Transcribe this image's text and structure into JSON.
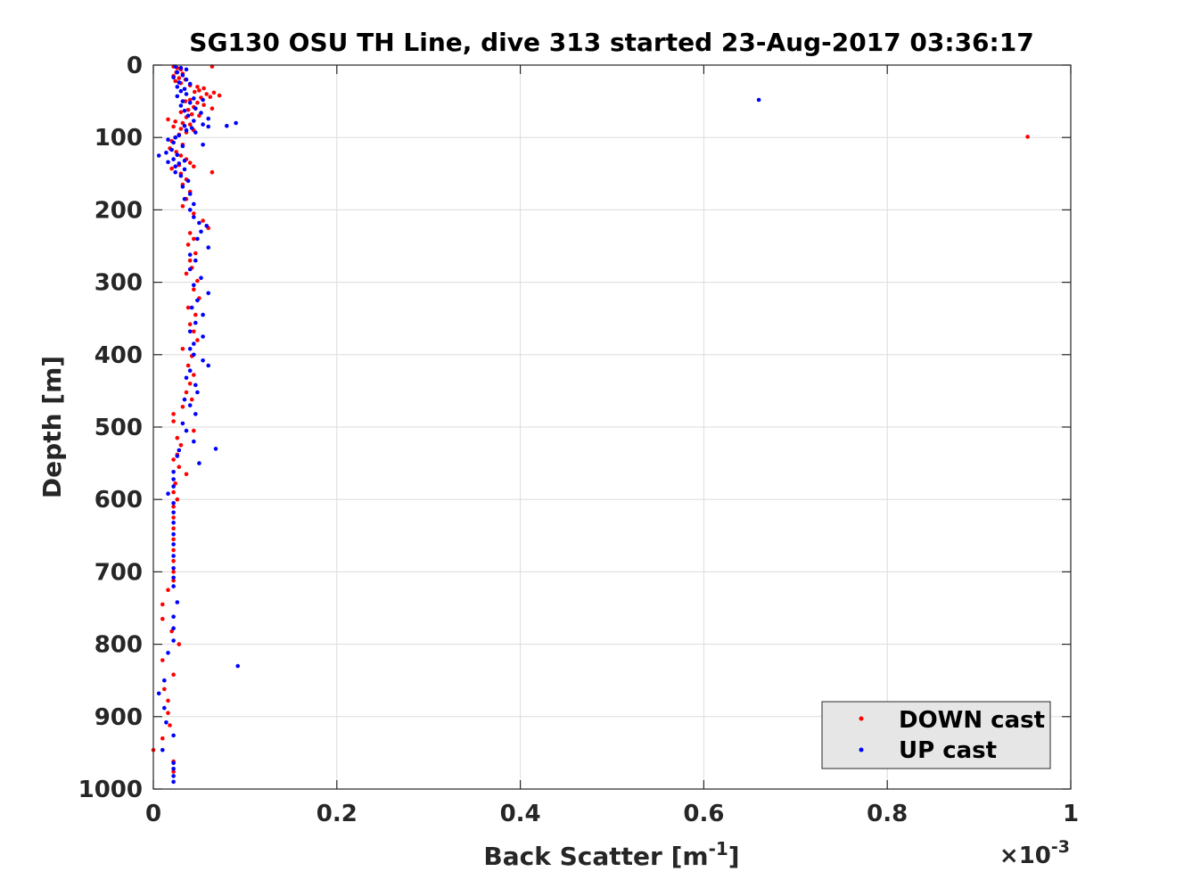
{
  "chart_data": {
    "type": "scatter",
    "title": "SG130 OSU TH Line, dive 313 started 23-Aug-2017 03:36:17",
    "xlabel": "Back Scatter [m",
    "xlabel_sup": "-1",
    "xlabel_tail": "]",
    "ylabel": "Depth [m]",
    "x_multiplier": {
      "prefix": "×10",
      "exponent": "-3"
    },
    "xlim": [
      0,
      1
    ],
    "ylim": [
      0,
      1000
    ],
    "y_reversed": true,
    "xticks": [
      "0",
      "0.2",
      "0.4",
      "0.6",
      "0.8",
      "1"
    ],
    "yticks": [
      "0",
      "100",
      "200",
      "300",
      "400",
      "500",
      "600",
      "700",
      "800",
      "900",
      "1000"
    ],
    "grid": true,
    "legend_position": "bottom-right",
    "series": [
      {
        "name": "DOWN cast",
        "color": "#ff0000",
        "points": [
          [
            0.022,
            2
          ],
          [
            0.026,
            4
          ],
          [
            0.03,
            6
          ],
          [
            0.064,
            2
          ],
          [
            0.025,
            10
          ],
          [
            0.032,
            12
          ],
          [
            0.022,
            15
          ],
          [
            0.028,
            18
          ],
          [
            0.035,
            20
          ],
          [
            0.024,
            22
          ],
          [
            0.03,
            25
          ],
          [
            0.04,
            28
          ],
          [
            0.048,
            30
          ],
          [
            0.055,
            32
          ],
          [
            0.05,
            35
          ],
          [
            0.045,
            37
          ],
          [
            0.058,
            40
          ],
          [
            0.066,
            38
          ],
          [
            0.072,
            42
          ],
          [
            0.062,
            44
          ],
          [
            0.052,
            45
          ],
          [
            0.04,
            48
          ],
          [
            0.035,
            50
          ],
          [
            0.048,
            52
          ],
          [
            0.055,
            55
          ],
          [
            0.044,
            58
          ],
          [
            0.064,
            60
          ],
          [
            0.038,
            62
          ],
          [
            0.03,
            65
          ],
          [
            0.042,
            68
          ],
          [
            0.05,
            70
          ],
          [
            0.036,
            72
          ],
          [
            0.016,
            75
          ],
          [
            0.024,
            78
          ],
          [
            0.032,
            80
          ],
          [
            0.04,
            82
          ],
          [
            0.022,
            85
          ],
          [
            0.03,
            88
          ],
          [
            0.044,
            90
          ],
          [
            0.036,
            93
          ],
          [
            0.028,
            96
          ],
          [
            0.024,
            100
          ],
          [
            0.02,
            105
          ],
          [
            0.032,
            110
          ],
          [
            0.018,
            115
          ],
          [
            0.025,
            120
          ],
          [
            0.03,
            125
          ],
          [
            0.036,
            130
          ],
          [
            0.04,
            135
          ],
          [
            0.028,
            138
          ],
          [
            0.044,
            140
          ],
          [
            0.02,
            143
          ],
          [
            0.064,
            148
          ],
          [
            0.03,
            150
          ],
          [
            0.036,
            158
          ],
          [
            0.032,
            165
          ],
          [
            0.04,
            175
          ],
          [
            0.036,
            185
          ],
          [
            0.032,
            195
          ],
          [
            0.044,
            205
          ],
          [
            0.054,
            215
          ],
          [
            0.06,
            225
          ],
          [
            0.04,
            232
          ],
          [
            0.044,
            240
          ],
          [
            0.038,
            248
          ],
          [
            0.046,
            260
          ],
          [
            0.04,
            270
          ],
          [
            0.042,
            280
          ],
          [
            0.036,
            288
          ],
          [
            0.048,
            298
          ],
          [
            0.044,
            310
          ],
          [
            0.05,
            322
          ],
          [
            0.038,
            335
          ],
          [
            0.046,
            345
          ],
          [
            0.04,
            358
          ],
          [
            0.044,
            368
          ],
          [
            0.048,
            380
          ],
          [
            0.032,
            392
          ],
          [
            0.042,
            402
          ],
          [
            0.038,
            415
          ],
          [
            0.044,
            428
          ],
          [
            0.04,
            440
          ],
          [
            0.036,
            452
          ],
          [
            0.042,
            462
          ],
          [
            0.032,
            472
          ],
          [
            0.022,
            482
          ],
          [
            0.022,
            492
          ],
          [
            0.044,
            505
          ],
          [
            0.026,
            515
          ],
          [
            0.03,
            525
          ],
          [
            0.026,
            538
          ],
          [
            0.022,
            545
          ],
          [
            0.028,
            555
          ],
          [
            0.036,
            565
          ],
          [
            0.024,
            578
          ],
          [
            0.022,
            590
          ],
          [
            0.026,
            600
          ],
          [
            0.022,
            610
          ],
          [
            0.022,
            625
          ],
          [
            0.022,
            640
          ],
          [
            0.022,
            655
          ],
          [
            0.022,
            670
          ],
          [
            0.022,
            685
          ],
          [
            0.022,
            700
          ],
          [
            0.022,
            712
          ],
          [
            0.016,
            725
          ],
          [
            0.01,
            745
          ],
          [
            0.01,
            765
          ],
          [
            0.02,
            782
          ],
          [
            0.028,
            800
          ],
          [
            0.01,
            822
          ],
          [
            0.022,
            842
          ],
          [
            0.012,
            862
          ],
          [
            0.016,
            878
          ],
          [
            0.016,
            895
          ],
          [
            0.018,
            912
          ],
          [
            0.01,
            930
          ],
          [
            0.0,
            946
          ],
          [
            0.022,
            962
          ],
          [
            0.022,
            976
          ],
          [
            0.953,
            99
          ]
        ]
      },
      {
        "name": "UP cast",
        "color": "#0000ff",
        "points": [
          [
            0.024,
            2
          ],
          [
            0.03,
            4
          ],
          [
            0.036,
            6
          ],
          [
            0.026,
            10
          ],
          [
            0.032,
            14
          ],
          [
            0.022,
            17
          ],
          [
            0.036,
            20
          ],
          [
            0.028,
            24
          ],
          [
            0.04,
            26
          ],
          [
            0.026,
            30
          ],
          [
            0.034,
            33
          ],
          [
            0.03,
            36
          ],
          [
            0.036,
            40
          ],
          [
            0.026,
            43
          ],
          [
            0.044,
            46
          ],
          [
            0.032,
            50
          ],
          [
            0.054,
            48
          ],
          [
            0.04,
            52
          ],
          [
            0.03,
            56
          ],
          [
            0.046,
            60
          ],
          [
            0.034,
            63
          ],
          [
            0.052,
            66
          ],
          [
            0.038,
            70
          ],
          [
            0.06,
            74
          ],
          [
            0.044,
            77
          ],
          [
            0.09,
            80
          ],
          [
            0.054,
            82
          ],
          [
            0.034,
            84
          ],
          [
            0.042,
            87
          ],
          [
            0.06,
            85
          ],
          [
            0.08,
            84
          ],
          [
            0.036,
            90
          ],
          [
            0.046,
            93
          ],
          [
            0.028,
            97
          ],
          [
            0.024,
            100
          ],
          [
            0.016,
            103
          ],
          [
            0.022,
            107
          ],
          [
            0.054,
            110
          ],
          [
            0.032,
            112
          ],
          [
            0.02,
            117
          ],
          [
            0.014,
            121
          ],
          [
            0.026,
            124
          ],
          [
            0.006,
            125
          ],
          [
            0.022,
            130
          ],
          [
            0.034,
            132
          ],
          [
            0.028,
            136
          ],
          [
            0.016,
            134
          ],
          [
            0.024,
            140
          ],
          [
            0.034,
            144
          ],
          [
            0.024,
            148
          ],
          [
            0.03,
            153
          ],
          [
            0.038,
            160
          ],
          [
            0.032,
            168
          ],
          [
            0.04,
            178
          ],
          [
            0.034,
            185
          ],
          [
            0.044,
            192
          ],
          [
            0.04,
            200
          ],
          [
            0.044,
            210
          ],
          [
            0.05,
            218
          ],
          [
            0.058,
            222
          ],
          [
            0.052,
            230
          ],
          [
            0.048,
            240
          ],
          [
            0.06,
            252
          ],
          [
            0.04,
            262
          ],
          [
            0.046,
            270
          ],
          [
            0.04,
            282
          ],
          [
            0.052,
            294
          ],
          [
            0.044,
            304
          ],
          [
            0.06,
            315
          ],
          [
            0.048,
            325
          ],
          [
            0.042,
            335
          ],
          [
            0.054,
            345
          ],
          [
            0.046,
            356
          ],
          [
            0.04,
            368
          ],
          [
            0.054,
            375
          ],
          [
            0.044,
            385
          ],
          [
            0.04,
            392
          ],
          [
            0.044,
            400
          ],
          [
            0.054,
            408
          ],
          [
            0.06,
            415
          ],
          [
            0.04,
            422
          ],
          [
            0.036,
            432
          ],
          [
            0.046,
            442
          ],
          [
            0.048,
            452
          ],
          [
            0.034,
            462
          ],
          [
            0.04,
            470
          ],
          [
            0.046,
            482
          ],
          [
            0.032,
            495
          ],
          [
            0.036,
            505
          ],
          [
            0.044,
            520
          ],
          [
            0.028,
            532
          ],
          [
            0.026,
            540
          ],
          [
            0.068,
            530
          ],
          [
            0.05,
            550
          ],
          [
            0.022,
            562
          ],
          [
            0.022,
            572
          ],
          [
            0.022,
            582
          ],
          [
            0.016,
            592
          ],
          [
            0.022,
            605
          ],
          [
            0.022,
            618
          ],
          [
            0.022,
            632
          ],
          [
            0.022,
            648
          ],
          [
            0.022,
            662
          ],
          [
            0.022,
            678
          ],
          [
            0.022,
            695
          ],
          [
            0.022,
            708
          ],
          [
            0.022,
            720
          ],
          [
            0.026,
            742
          ],
          [
            0.022,
            762
          ],
          [
            0.022,
            778
          ],
          [
            0.022,
            795
          ],
          [
            0.016,
            812
          ],
          [
            0.092,
            830
          ],
          [
            0.012,
            850
          ],
          [
            0.006,
            868
          ],
          [
            0.012,
            888
          ],
          [
            0.014,
            908
          ],
          [
            0.022,
            926
          ],
          [
            0.01,
            946
          ],
          [
            0.022,
            964
          ],
          [
            0.022,
            972
          ],
          [
            0.022,
            982
          ],
          [
            0.022,
            990
          ],
          [
            0.66,
            48
          ]
        ]
      }
    ]
  }
}
